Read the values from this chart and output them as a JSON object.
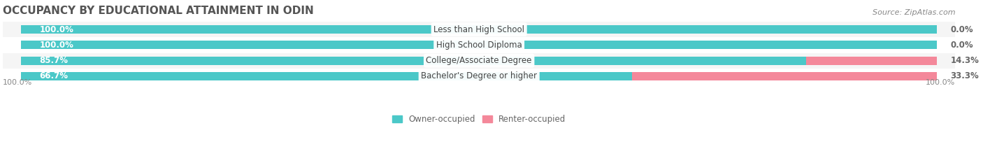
{
  "title": "OCCUPANCY BY EDUCATIONAL ATTAINMENT IN ODIN",
  "source": "Source: ZipAtlas.com",
  "categories": [
    "Less than High School",
    "High School Diploma",
    "College/Associate Degree",
    "Bachelor's Degree or higher"
  ],
  "owner_values": [
    100.0,
    100.0,
    85.7,
    66.7
  ],
  "renter_values": [
    0.0,
    0.0,
    14.3,
    33.3
  ],
  "owner_color": "#4BC8C8",
  "renter_color": "#F4889A",
  "owner_color_light": "#A8E6E6",
  "renter_color_light": "#FADCE3",
  "bar_bg_color": "#F0F0F0",
  "background_color": "#FFFFFF",
  "row_bg_colors": [
    "#F5F5F5",
    "#FFFFFF",
    "#F5F5F5",
    "#FFFFFF"
  ],
  "title_fontsize": 11,
  "label_fontsize": 8.5,
  "tick_fontsize": 8,
  "legend_fontsize": 8.5,
  "xlim": [
    0,
    100
  ],
  "figsize": [
    14.06,
    2.33
  ],
  "dpi": 100
}
